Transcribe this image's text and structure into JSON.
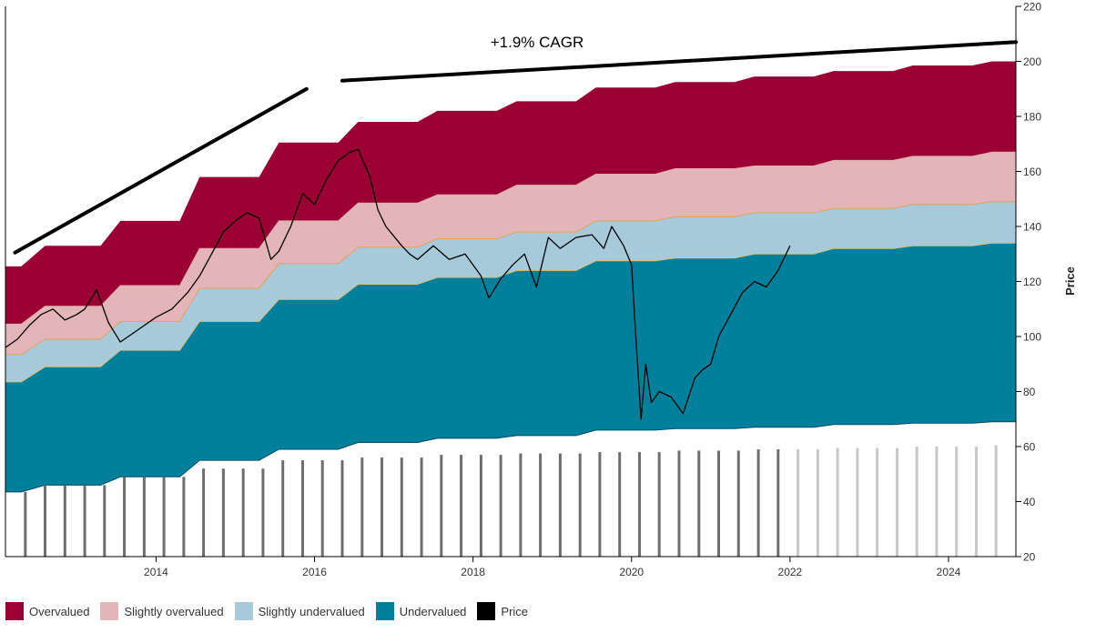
{
  "chart_data": {
    "type": "area",
    "annotation": "+1.9% CAGR",
    "ylabel": "Price",
    "ylim": [
      20,
      220
    ],
    "xlim": [
      2012.1,
      2024.85
    ],
    "y_ticks": [
      20,
      40,
      60,
      80,
      100,
      120,
      140,
      160,
      180,
      200,
      220
    ],
    "x_ticks": [
      {
        "value": 2014,
        "label": "2014"
      },
      {
        "value": 2016,
        "label": "2016"
      },
      {
        "value": 2018,
        "label": "2018"
      },
      {
        "value": 2020,
        "label": "2020"
      },
      {
        "value": 2022,
        "label": "2022"
      },
      {
        "value": 2024,
        "label": "2024"
      }
    ],
    "colors": {
      "overvalued": "#9b0034",
      "slightly_overvalued": "#e4b5b8",
      "slightly_undervalued": "#a6cad9",
      "undervalued": "#00809a",
      "price": "#000000",
      "bar_past": "#6e6e6e",
      "bar_future": "#c8c8c8"
    },
    "legend": [
      {
        "label": "Overvalued",
        "color": "#9b0034"
      },
      {
        "label": "Slightly overvalued",
        "color": "#e4b5b8"
      },
      {
        "label": "Slightly undervalued",
        "color": "#a6cad9"
      },
      {
        "label": "Undervalued",
        "color": "#00809a"
      },
      {
        "label": "Price",
        "color": "#000000"
      }
    ],
    "bands": {
      "x": [
        2012.1,
        2012.3,
        2012.6,
        2013.1,
        2013.3,
        2013.55,
        2014.1,
        2014.3,
        2014.55,
        2015.1,
        2015.3,
        2015.55,
        2016.1,
        2016.3,
        2016.55,
        2017.1,
        2017.3,
        2017.55,
        2018.1,
        2018.3,
        2018.55,
        2019.1,
        2019.3,
        2019.55,
        2020.1,
        2020.3,
        2020.55,
        2021.1,
        2021.3,
        2021.55,
        2022.1,
        2022.3,
        2022.55,
        2023.1,
        2023.3,
        2023.55,
        2024.1,
        2024.3,
        2024.55,
        2024.85
      ],
      "undervalued": [
        43.5,
        43.5,
        46,
        46,
        46,
        49,
        49,
        49,
        55,
        55,
        55,
        59,
        59,
        59,
        61.5,
        61.5,
        61.5,
        63,
        63,
        63,
        64,
        64,
        64,
        66,
        66,
        66,
        66.5,
        66.5,
        66.5,
        67,
        67,
        67,
        68,
        68,
        68,
        68.5,
        68.5,
        68.5,
        69,
        69
      ],
      "slightly_undervalued": [
        83.5,
        83.5,
        89,
        89,
        89,
        95,
        95,
        95,
        105.5,
        105.5,
        105.5,
        113.5,
        113.5,
        113.5,
        119,
        119,
        119,
        121.5,
        121.5,
        121.5,
        124,
        124,
        124,
        127.5,
        127.5,
        127.5,
        128.5,
        128.5,
        128.5,
        130,
        130,
        130,
        132,
        132,
        132,
        133,
        133,
        133,
        134,
        134
      ],
      "slightly_overvalued": [
        93.5,
        93.5,
        99,
        99,
        99,
        105.5,
        105.5,
        105.5,
        117.5,
        117.5,
        117.5,
        126.5,
        126.5,
        126.5,
        132.5,
        132.5,
        132.5,
        135.5,
        135.5,
        135.5,
        138,
        138,
        138,
        142,
        142,
        142,
        143.5,
        143.5,
        143.5,
        145,
        145,
        145,
        146.5,
        146.5,
        146.5,
        148,
        148,
        148,
        149,
        149
      ],
      "overvalued": [
        104.5,
        104.5,
        111,
        111,
        111,
        118.5,
        118.5,
        118.5,
        132,
        132,
        132,
        142,
        142,
        142,
        148.5,
        148.5,
        148.5,
        151.5,
        151.5,
        151.5,
        155,
        155,
        155,
        159,
        159,
        159,
        161,
        161,
        161,
        162,
        162,
        162,
        164,
        164,
        164,
        165.5,
        165.5,
        165.5,
        167,
        167
      ],
      "top": [
        125.5,
        125.5,
        133,
        133,
        133,
        142,
        142,
        142,
        158,
        158,
        158,
        170.5,
        170.5,
        170.5,
        178,
        178,
        178,
        182,
        182,
        182,
        185.5,
        185.5,
        185.5,
        190.5,
        190.5,
        190.5,
        192.5,
        192.5,
        192.5,
        194.5,
        194.5,
        194.5,
        196.5,
        196.5,
        196.5,
        198.5,
        198.5,
        198.5,
        200,
        200
      ]
    },
    "price": {
      "x": [
        2012.1,
        2012.25,
        2012.4,
        2012.55,
        2012.7,
        2012.85,
        2013.0,
        2013.1,
        2013.25,
        2013.4,
        2013.55,
        2013.7,
        2013.85,
        2014.0,
        2014.2,
        2014.4,
        2014.55,
        2014.7,
        2014.85,
        2015.0,
        2015.15,
        2015.3,
        2015.45,
        2015.55,
        2015.7,
        2015.85,
        2016.0,
        2016.15,
        2016.3,
        2016.45,
        2016.55,
        2016.7,
        2016.8,
        2016.9,
        2017.1,
        2017.2,
        2017.3,
        2017.5,
        2017.7,
        2017.9,
        2018.1,
        2018.2,
        2018.35,
        2018.5,
        2018.65,
        2018.8,
        2018.95,
        2019.1,
        2019.3,
        2019.5,
        2019.65,
        2019.75,
        2019.9,
        2020.0,
        2020.05,
        2020.12,
        2020.18,
        2020.25,
        2020.35,
        2020.5,
        2020.65,
        2020.8,
        2020.9,
        2021.0,
        2021.1,
        2021.25,
        2021.4,
        2021.55,
        2021.7,
        2021.85,
        2022.0
      ],
      "values": [
        96,
        99,
        104,
        108,
        110,
        106,
        108,
        110,
        117,
        105,
        98,
        101,
        104,
        107,
        110,
        116,
        122,
        130,
        138,
        142,
        145,
        143,
        128,
        131,
        140,
        152,
        148,
        157,
        164,
        167,
        168,
        158,
        146,
        140,
        133,
        130,
        128,
        133,
        128,
        130,
        122,
        114,
        121,
        126,
        130,
        118,
        136,
        132,
        136,
        137,
        132,
        140,
        133,
        126,
        102,
        70,
        90,
        76,
        80,
        78,
        72,
        85,
        88,
        90,
        100,
        108,
        116,
        120,
        118,
        124,
        133
      ]
    },
    "bars": {
      "x": [
        2012.35,
        2012.6,
        2012.85,
        2013.1,
        2013.35,
        2013.6,
        2013.85,
        2014.1,
        2014.35,
        2014.6,
        2014.85,
        2015.1,
        2015.35,
        2015.6,
        2015.85,
        2016.1,
        2016.35,
        2016.6,
        2016.85,
        2017.1,
        2017.35,
        2017.6,
        2017.85,
        2018.1,
        2018.35,
        2018.6,
        2018.85,
        2019.1,
        2019.35,
        2019.6,
        2019.85,
        2020.1,
        2020.35,
        2020.6,
        2020.85,
        2021.1,
        2021.35,
        2021.6,
        2021.85,
        2022.1,
        2022.35,
        2022.6,
        2022.85,
        2023.1,
        2023.35,
        2023.6,
        2023.85,
        2024.1,
        2024.35,
        2024.6
      ],
      "values": [
        43.5,
        46,
        46,
        46,
        46,
        49,
        49,
        49,
        49,
        52,
        52,
        52,
        52,
        55,
        55,
        55,
        55,
        56,
        56,
        56,
        56,
        57,
        57,
        57,
        57,
        57.5,
        57.5,
        57.5,
        57.5,
        58,
        58,
        58,
        58,
        58.5,
        58.5,
        58.5,
        58.5,
        59,
        59,
        59,
        59,
        59.5,
        59.5,
        59.5,
        59.5,
        60,
        60,
        60,
        60,
        60.5
      ],
      "future_from": 2022.0
    },
    "trend_lines": [
      {
        "x": [
          2012.22,
          2015.9
        ],
        "y": [
          130.5,
          190
        ]
      },
      {
        "x": [
          2016.35,
          2024.85
        ],
        "y": [
          193,
          207
        ]
      }
    ]
  }
}
